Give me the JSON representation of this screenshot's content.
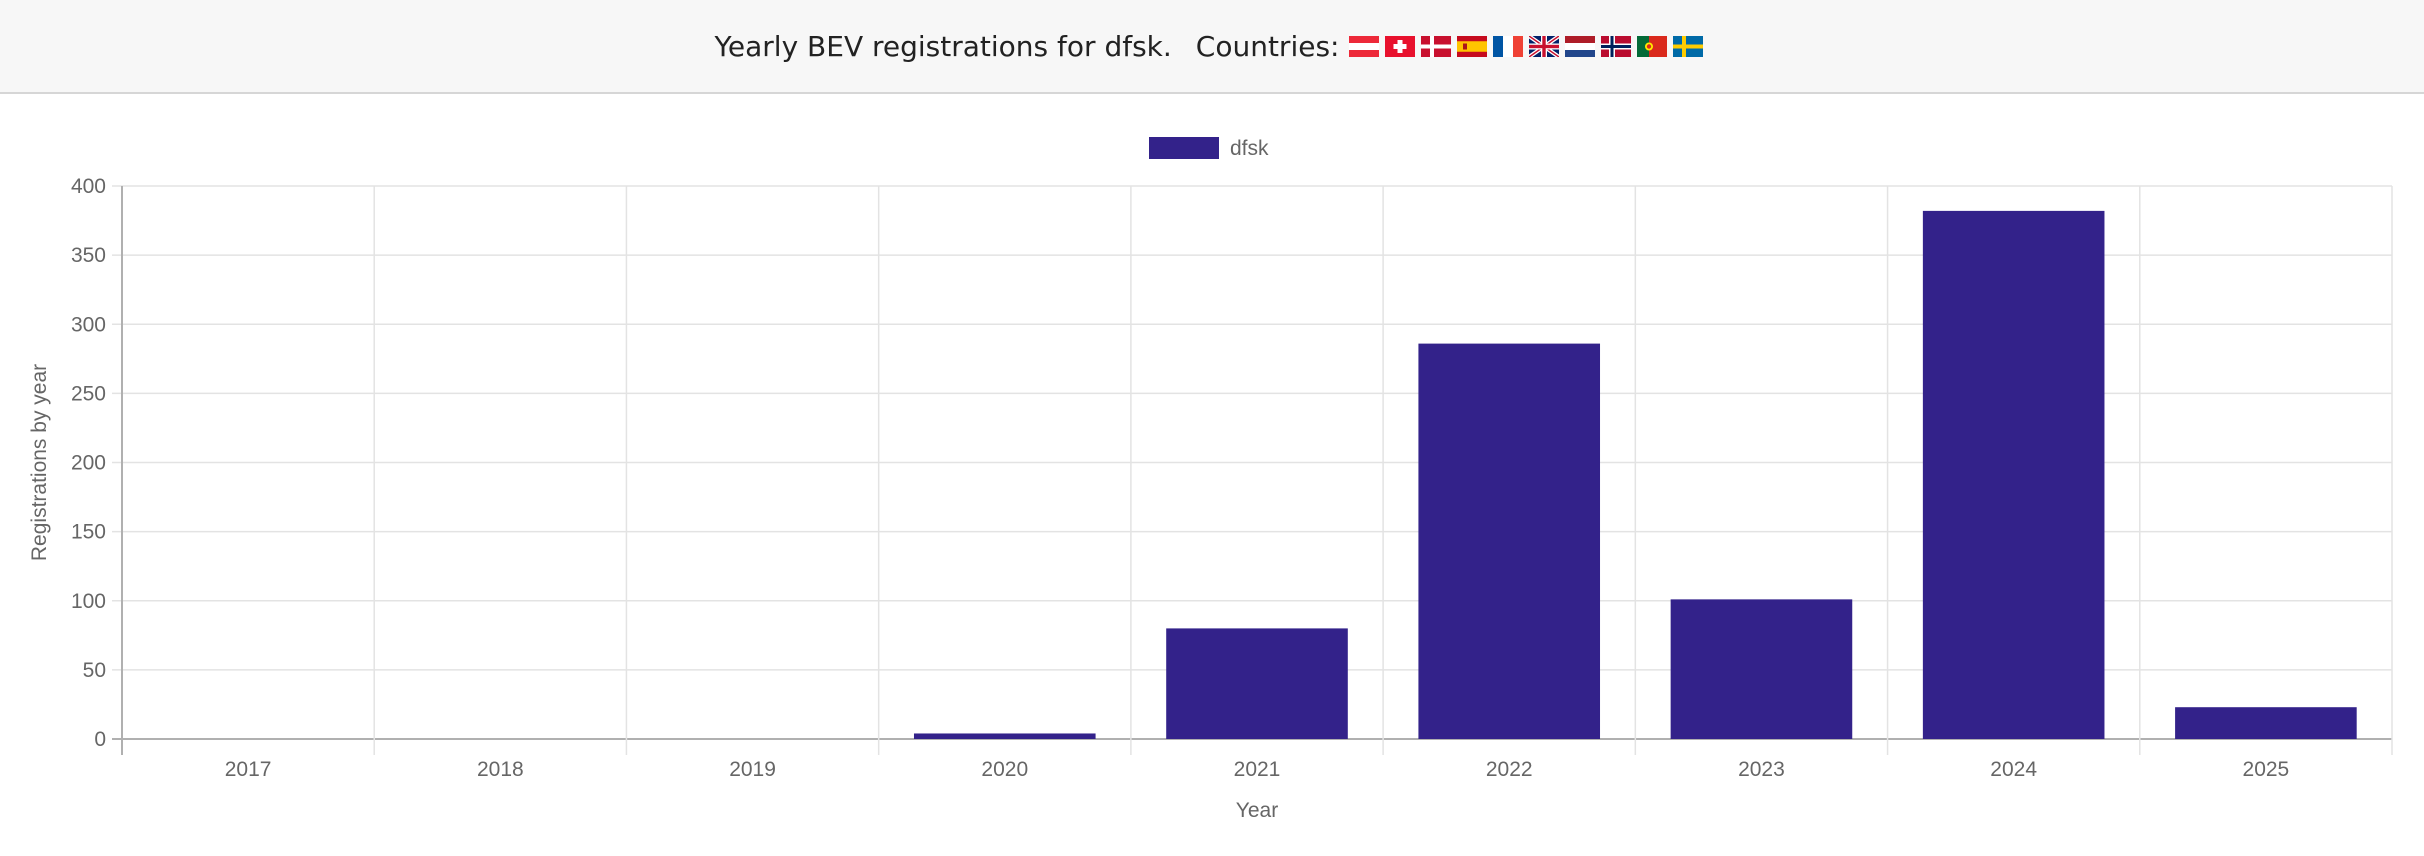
{
  "header": {
    "title": "Yearly BEV registrations for dfsk.",
    "countries_label": "Countries:",
    "flags": [
      {
        "name": "austria-flag-icon",
        "code": "AT"
      },
      {
        "name": "switzerland-flag-icon",
        "code": "CH"
      },
      {
        "name": "denmark-flag-icon",
        "code": "DK"
      },
      {
        "name": "spain-flag-icon",
        "code": "ES"
      },
      {
        "name": "france-flag-icon",
        "code": "FR"
      },
      {
        "name": "united-kingdom-flag-icon",
        "code": "GB"
      },
      {
        "name": "netherlands-flag-icon",
        "code": "NL"
      },
      {
        "name": "norway-flag-icon",
        "code": "NO"
      },
      {
        "name": "portugal-flag-icon",
        "code": "PT"
      },
      {
        "name": "sweden-flag-icon",
        "code": "SE"
      }
    ]
  },
  "colors": {
    "bar": "#33228a",
    "grid": "#e3e3e3",
    "axis": "#b0b0b0",
    "text": "#666666"
  },
  "chart_data": {
    "type": "bar",
    "categories": [
      "2017",
      "2018",
      "2019",
      "2020",
      "2021",
      "2022",
      "2023",
      "2024",
      "2025"
    ],
    "series": [
      {
        "name": "dfsk",
        "values": [
          0,
          0,
          0,
          4,
          80,
          286,
          101,
          382,
          23
        ]
      }
    ],
    "title": "",
    "xlabel": "Year",
    "ylabel": "Registrations by year",
    "ylim": [
      0,
      400
    ],
    "yticks": [
      0,
      50,
      100,
      150,
      200,
      250,
      300,
      350,
      400
    ],
    "grid": true,
    "legend": "top-center"
  }
}
